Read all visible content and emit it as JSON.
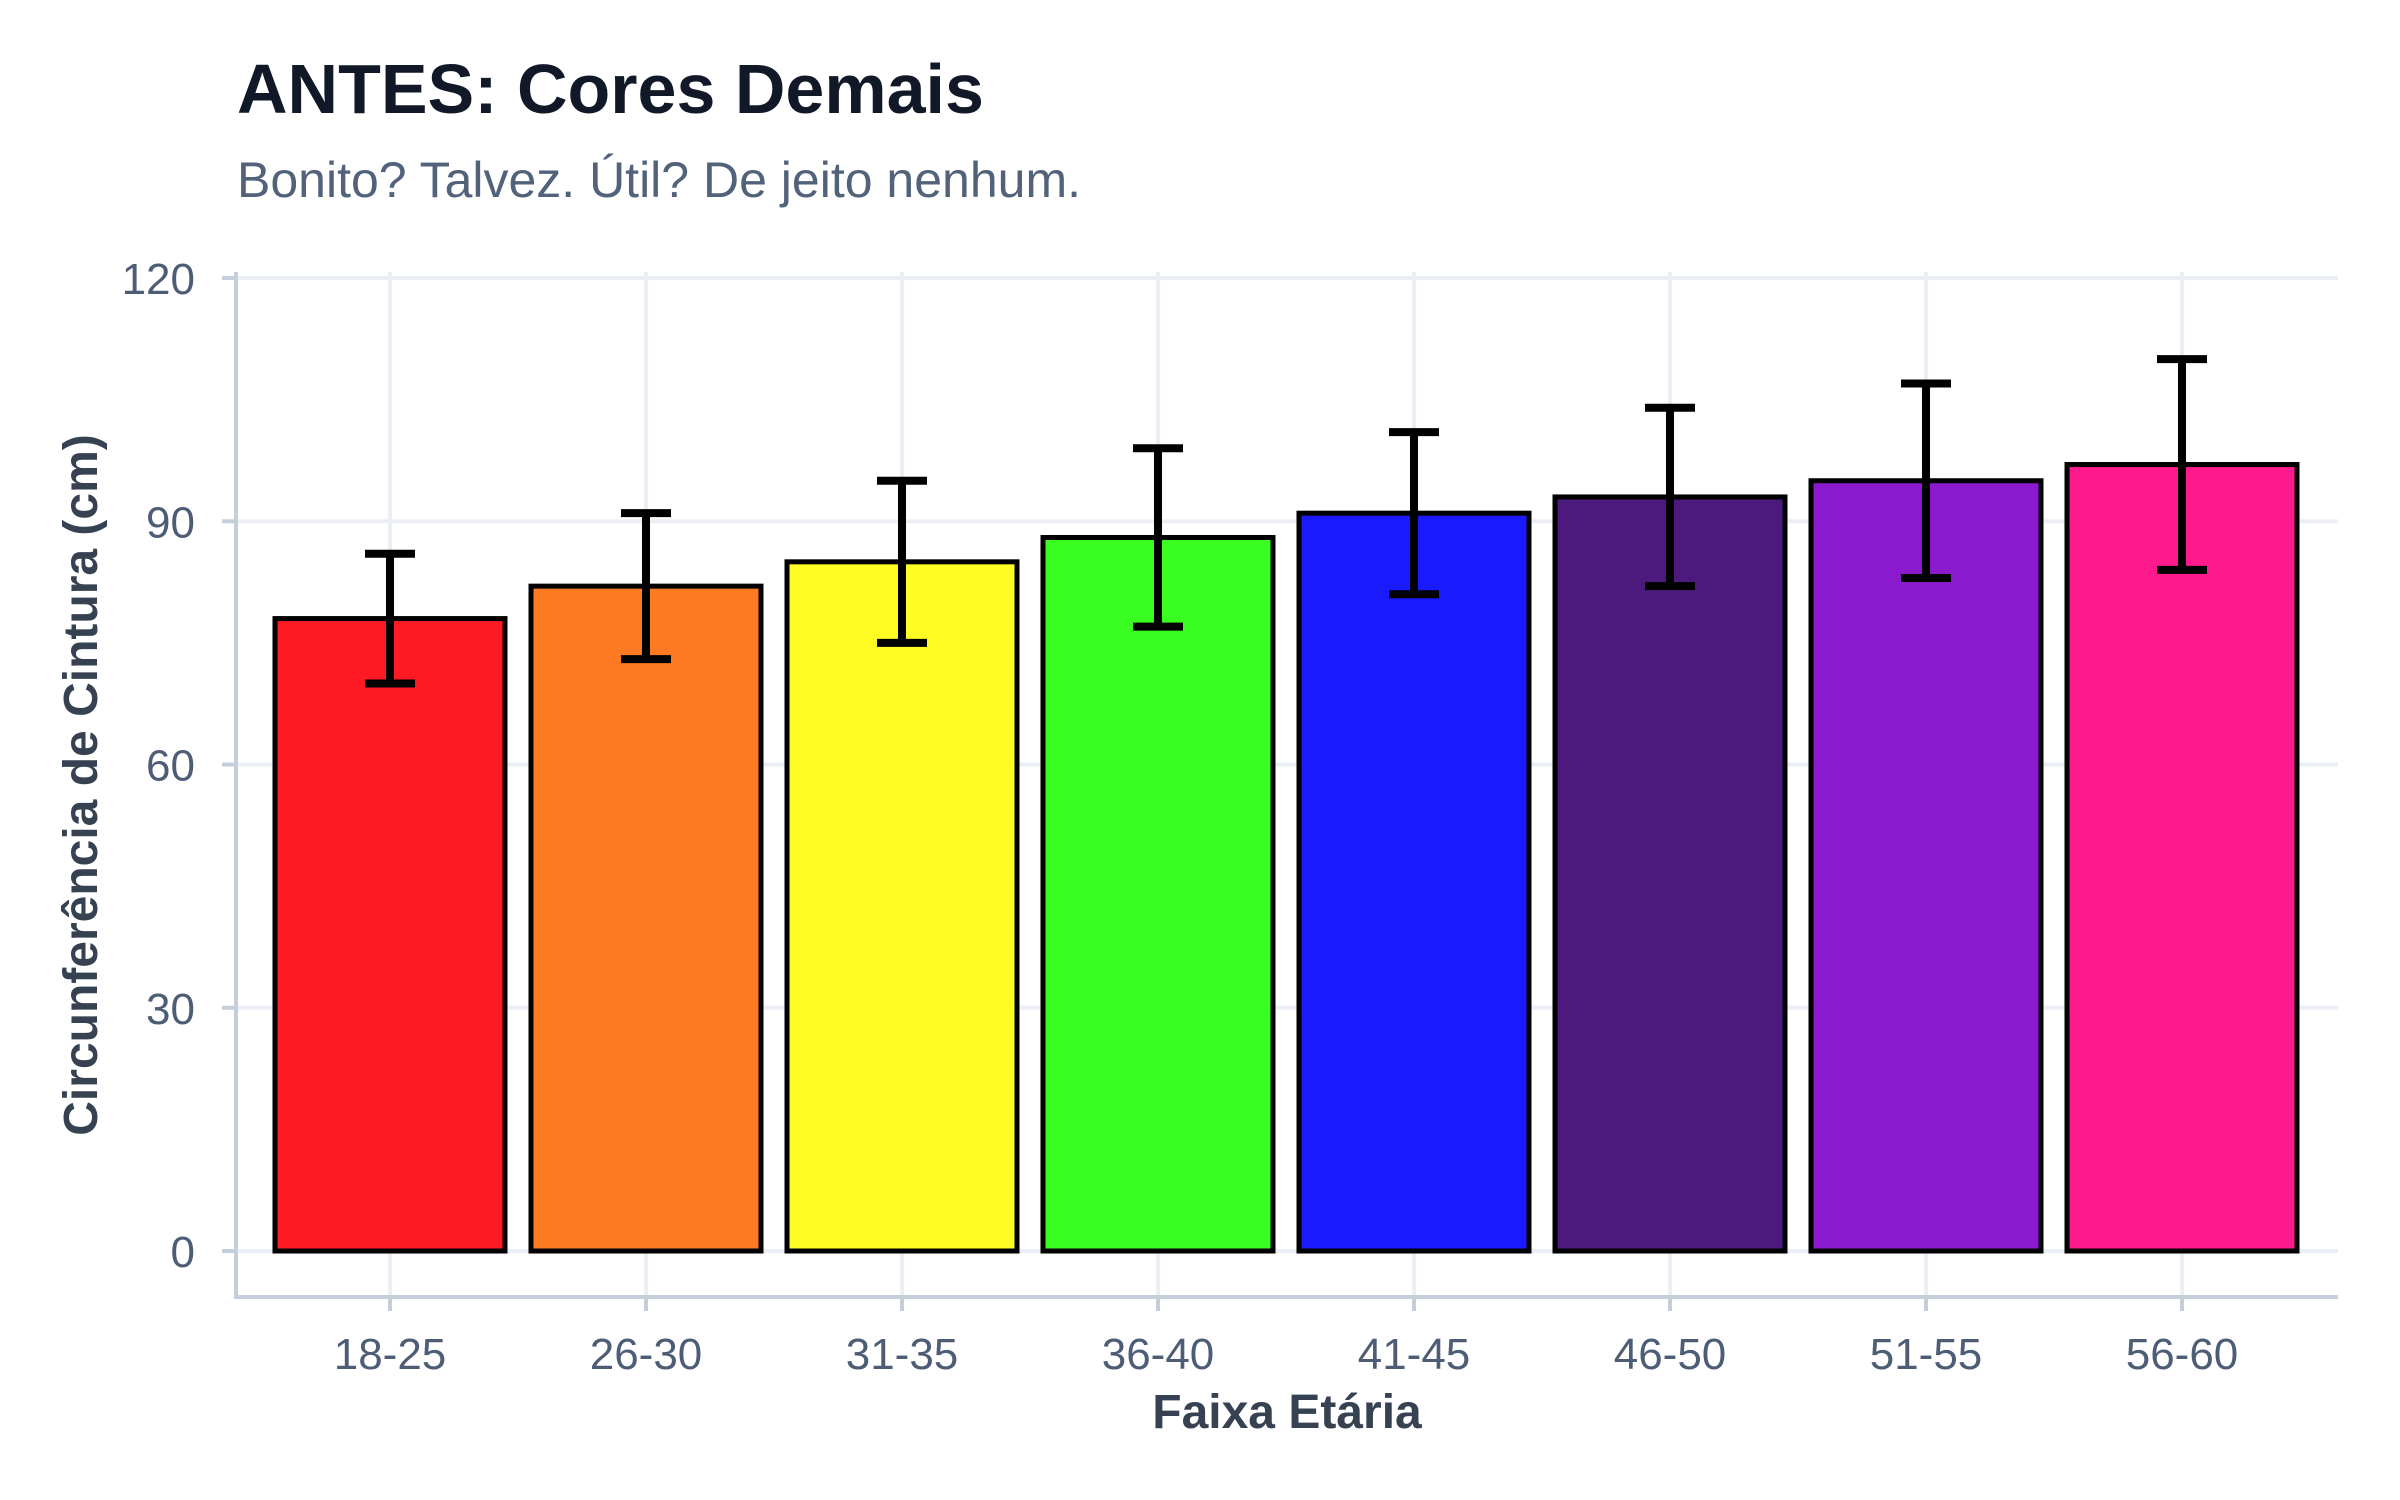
{
  "chart_data": {
    "type": "bar",
    "title": "ANTES: Cores Demais",
    "subtitle": "Bonito? Talvez. Útil? De jeito nenhum.",
    "xlabel": "Faixa Etária",
    "ylabel": "Circunferência de Cintura (cm)",
    "categories": [
      "18-25",
      "26-30",
      "31-35",
      "36-40",
      "41-45",
      "46-50",
      "51-55",
      "56-60"
    ],
    "values": [
      78,
      82,
      85,
      88,
      91,
      93,
      95,
      97
    ],
    "error": [
      8,
      9,
      10,
      11,
      10,
      11,
      12,
      13
    ],
    "colors": [
      "#fe1a22",
      "#fe7a22",
      "#fefc22",
      "#3afe22",
      "#1a1afe",
      "#4c1a7c",
      "#8b1acf",
      "#fe1a8c"
    ],
    "yticks": [
      0,
      30,
      60,
      90,
      120
    ],
    "ytick_labels": [
      "0",
      "30",
      "60",
      "90",
      "120"
    ],
    "ylim": [
      -5.7,
      120.8
    ],
    "grid": true,
    "legend": "none",
    "bar_outline_color": "#000000",
    "error_bar_color": "#000000",
    "axis_color": "#c5cfdc",
    "grid_color": "#ebeff5"
  }
}
